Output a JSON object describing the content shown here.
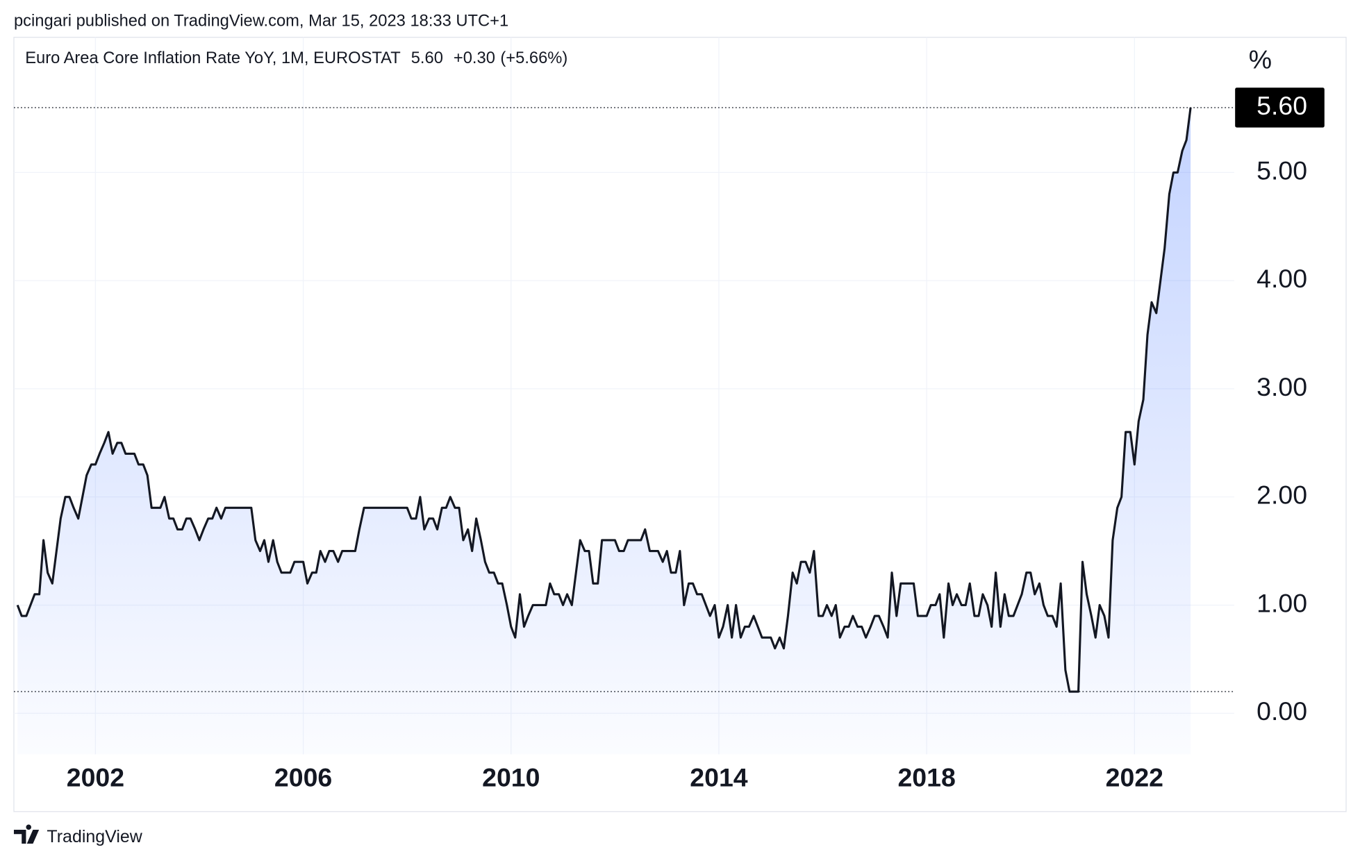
{
  "header": {
    "published": "pcingari published on TradingView.com, Mar 15, 2023 18:33 UTC+1"
  },
  "footer": {
    "brand": "TradingView"
  },
  "chart_data": {
    "type": "line",
    "title": "Euro Area Core Inflation Rate YoY, 1M, EUROSTAT",
    "last_value_text": "5.60",
    "change_text": "+0.30",
    "change_percent_text": "(+5.66%)",
    "y_unit": "%",
    "color": "#131722",
    "fill_color": "#2962ff",
    "grid": true,
    "xlim": [
      2000.43,
      2023.92
    ],
    "xticks": [
      2002,
      2006,
      2010,
      2014,
      2018,
      2022
    ],
    "ylim": [
      -0.38,
      6.25
    ],
    "yticks": [
      {
        "value": 0,
        "label": "0.00"
      },
      {
        "value": 1,
        "label": "1.00"
      },
      {
        "value": 2,
        "label": "2.00"
      },
      {
        "value": 3,
        "label": "3.00"
      },
      {
        "value": 4,
        "label": "4.00"
      },
      {
        "value": 5,
        "label": "5.00"
      }
    ],
    "price_lines": [
      {
        "value": 5.6,
        "label": "5.60"
      },
      {
        "value": 0.2
      }
    ],
    "x": [
      2000.5,
      2000.58,
      2000.67,
      2000.75,
      2000.83,
      2000.92,
      2001,
      2001.08,
      2001.17,
      2001.25,
      2001.33,
      2001.42,
      2001.5,
      2001.58,
      2001.67,
      2001.75,
      2001.83,
      2001.92,
      2002,
      2002.08,
      2002.17,
      2002.25,
      2002.33,
      2002.42,
      2002.5,
      2002.58,
      2002.67,
      2002.75,
      2002.83,
      2002.92,
      2003,
      2003.08,
      2003.17,
      2003.25,
      2003.33,
      2003.42,
      2003.5,
      2003.58,
      2003.67,
      2003.75,
      2003.83,
      2003.92,
      2004,
      2004.08,
      2004.17,
      2004.25,
      2004.33,
      2004.42,
      2004.5,
      2004.58,
      2004.67,
      2004.75,
      2004.83,
      2004.92,
      2005,
      2005.08,
      2005.17,
      2005.25,
      2005.33,
      2005.42,
      2005.5,
      2005.58,
      2005.67,
      2005.75,
      2005.83,
      2005.92,
      2006,
      2006.08,
      2006.17,
      2006.25,
      2006.33,
      2006.42,
      2006.5,
      2006.58,
      2006.67,
      2006.75,
      2006.83,
      2006.92,
      2007,
      2007.08,
      2007.17,
      2007.25,
      2007.33,
      2007.42,
      2007.5,
      2007.58,
      2007.67,
      2007.75,
      2007.83,
      2007.92,
      2008,
      2008.08,
      2008.17,
      2008.25,
      2008.33,
      2008.42,
      2008.5,
      2008.58,
      2008.67,
      2008.75,
      2008.83,
      2008.92,
      2009,
      2009.08,
      2009.17,
      2009.25,
      2009.33,
      2009.42,
      2009.5,
      2009.58,
      2009.67,
      2009.75,
      2009.83,
      2009.92,
      2010,
      2010.08,
      2010.17,
      2010.25,
      2010.33,
      2010.42,
      2010.5,
      2010.58,
      2010.67,
      2010.75,
      2010.83,
      2010.92,
      2011,
      2011.08,
      2011.17,
      2011.25,
      2011.33,
      2011.42,
      2011.5,
      2011.58,
      2011.67,
      2011.75,
      2011.83,
      2011.92,
      2012,
      2012.08,
      2012.17,
      2012.25,
      2012.33,
      2012.42,
      2012.5,
      2012.58,
      2012.67,
      2012.75,
      2012.83,
      2012.92,
      2013,
      2013.08,
      2013.17,
      2013.25,
      2013.33,
      2013.42,
      2013.5,
      2013.58,
      2013.67,
      2013.75,
      2013.83,
      2013.92,
      2014,
      2014.08,
      2014.17,
      2014.25,
      2014.33,
      2014.42,
      2014.5,
      2014.58,
      2014.67,
      2014.75,
      2014.83,
      2014.92,
      2015,
      2015.08,
      2015.17,
      2015.25,
      2015.33,
      2015.42,
      2015.5,
      2015.58,
      2015.67,
      2015.75,
      2015.83,
      2015.92,
      2016,
      2016.08,
      2016.17,
      2016.25,
      2016.33,
      2016.42,
      2016.5,
      2016.58,
      2016.67,
      2016.75,
      2016.83,
      2016.92,
      2017,
      2017.08,
      2017.17,
      2017.25,
      2017.33,
      2017.42,
      2017.5,
      2017.58,
      2017.67,
      2017.75,
      2017.83,
      2017.92,
      2018,
      2018.08,
      2018.17,
      2018.25,
      2018.33,
      2018.42,
      2018.5,
      2018.58,
      2018.67,
      2018.75,
      2018.83,
      2018.92,
      2019,
      2019.08,
      2019.17,
      2019.25,
      2019.33,
      2019.42,
      2019.5,
      2019.58,
      2019.67,
      2019.75,
      2019.83,
      2019.92,
      2020,
      2020.08,
      2020.17,
      2020.25,
      2020.33,
      2020.42,
      2020.5,
      2020.58,
      2020.67,
      2020.75,
      2020.83,
      2020.92,
      2021,
      2021.08,
      2021.17,
      2021.25,
      2021.33,
      2021.42,
      2021.5,
      2021.58,
      2021.67,
      2021.75,
      2021.83,
      2021.92,
      2022,
      2022.08,
      2022.17,
      2022.25,
      2022.33,
      2022.42,
      2022.5,
      2022.58,
      2022.67,
      2022.75,
      2022.83,
      2022.92,
      2023,
      2023.08
    ],
    "values": [
      1.0,
      0.9,
      0.9,
      1.0,
      1.1,
      1.1,
      1.6,
      1.3,
      1.2,
      1.5,
      1.8,
      2.0,
      2.0,
      1.9,
      1.8,
      2.0,
      2.2,
      2.3,
      2.3,
      2.4,
      2.5,
      2.6,
      2.4,
      2.5,
      2.5,
      2.4,
      2.4,
      2.4,
      2.3,
      2.3,
      2.2,
      1.9,
      1.9,
      1.9,
      2.0,
      1.8,
      1.8,
      1.7,
      1.7,
      1.8,
      1.8,
      1.7,
      1.6,
      1.7,
      1.8,
      1.8,
      1.9,
      1.8,
      1.9,
      1.9,
      1.9,
      1.9,
      1.9,
      1.9,
      1.9,
      1.6,
      1.5,
      1.6,
      1.4,
      1.6,
      1.4,
      1.3,
      1.3,
      1.3,
      1.4,
      1.4,
      1.4,
      1.2,
      1.3,
      1.3,
      1.5,
      1.4,
      1.5,
      1.5,
      1.4,
      1.5,
      1.5,
      1.5,
      1.5,
      1.7,
      1.9,
      1.9,
      1.9,
      1.9,
      1.9,
      1.9,
      1.9,
      1.9,
      1.9,
      1.9,
      1.9,
      1.8,
      1.8,
      2.0,
      1.7,
      1.8,
      1.8,
      1.7,
      1.9,
      1.9,
      2.0,
      1.9,
      1.9,
      1.6,
      1.7,
      1.5,
      1.8,
      1.6,
      1.4,
      1.3,
      1.3,
      1.2,
      1.2,
      1.0,
      0.8,
      0.7,
      1.1,
      0.8,
      0.9,
      1.0,
      1.0,
      1.0,
      1.0,
      1.2,
      1.1,
      1.1,
      1.0,
      1.1,
      1.0,
      1.3,
      1.6,
      1.5,
      1.5,
      1.2,
      1.2,
      1.6,
      1.6,
      1.6,
      1.6,
      1.5,
      1.5,
      1.6,
      1.6,
      1.6,
      1.6,
      1.7,
      1.5,
      1.5,
      1.5,
      1.4,
      1.5,
      1.3,
      1.3,
      1.5,
      1.0,
      1.2,
      1.2,
      1.1,
      1.1,
      1.0,
      0.9,
      1.0,
      0.7,
      0.8,
      1.0,
      0.7,
      1.0,
      0.7,
      0.8,
      0.8,
      0.9,
      0.8,
      0.7,
      0.7,
      0.7,
      0.6,
      0.7,
      0.6,
      0.9,
      1.3,
      1.2,
      1.4,
      1.4,
      1.3,
      1.5,
      0.9,
      0.9,
      1.0,
      0.9,
      1.0,
      0.7,
      0.8,
      0.8,
      0.9,
      0.8,
      0.8,
      0.7,
      0.8,
      0.9,
      0.9,
      0.8,
      0.7,
      1.3,
      0.9,
      1.2,
      1.2,
      1.2,
      1.2,
      0.9,
      0.9,
      0.9,
      1.0,
      1.0,
      1.1,
      0.7,
      1.2,
      1.0,
      1.1,
      1.0,
      1.0,
      1.2,
      0.9,
      0.9,
      1.1,
      1.0,
      0.8,
      1.3,
      0.8,
      1.1,
      0.9,
      0.9,
      1.0,
      1.1,
      1.3,
      1.3,
      1.1,
      1.2,
      1.0,
      0.9,
      0.9,
      0.8,
      1.2,
      0.4,
      0.2,
      0.2,
      0.2,
      1.4,
      1.1,
      0.9,
      0.7,
      1.0,
      0.9,
      0.7,
      1.6,
      1.9,
      2.0,
      2.6,
      2.6,
      2.3,
      2.7,
      2.9,
      3.5,
      3.8,
      3.7,
      4.0,
      4.3,
      4.8,
      5.0,
      5.0,
      5.2,
      5.3,
      5.6
    ]
  }
}
